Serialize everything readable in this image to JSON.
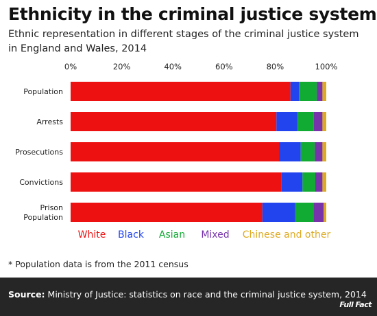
{
  "title": "Ethnicity in the criminal justice system",
  "subtitle": "Ethnic representation in different stages of the criminal justice system in England and Wales, 2014",
  "footnote": "* Population data is from the 2011 census",
  "source": {
    "label": "Source:",
    "text": "Ministry of Justice: statistics on race and the criminal justice system, 2014"
  },
  "logo": "Full Fact",
  "chart_data": {
    "type": "bar",
    "orientation": "horizontal",
    "stacked": true,
    "xlim": [
      0,
      100
    ],
    "x_ticks": [
      "0%",
      "20%",
      "40%",
      "60%",
      "80%",
      "100%"
    ],
    "grid": false,
    "legend_position": "bottom",
    "categories": [
      [
        "Population"
      ],
      [
        "Arrests"
      ],
      [
        "Prosecutions"
      ],
      [
        "Convictions"
      ],
      [
        "Prison",
        "Population"
      ]
    ],
    "series": [
      {
        "name": "White",
        "color": "#ee1111",
        "values": [
          86,
          80.5,
          81.5,
          82.5,
          75
        ]
      },
      {
        "name": "Black",
        "color": "#2244ee",
        "values": [
          3.3,
          8.3,
          8.5,
          8.2,
          12.8
        ]
      },
      {
        "name": "Asian",
        "color": "#11aa33",
        "values": [
          7,
          6.3,
          5.5,
          5,
          7.2
        ]
      },
      {
        "name": "Mixed",
        "color": "#7733aa",
        "values": [
          2.2,
          3.4,
          3,
          2.8,
          4
        ]
      },
      {
        "name": "Chinese and other",
        "color": "#ddaa22",
        "values": [
          1.5,
          1.5,
          1.5,
          1.5,
          1
        ]
      }
    ]
  }
}
